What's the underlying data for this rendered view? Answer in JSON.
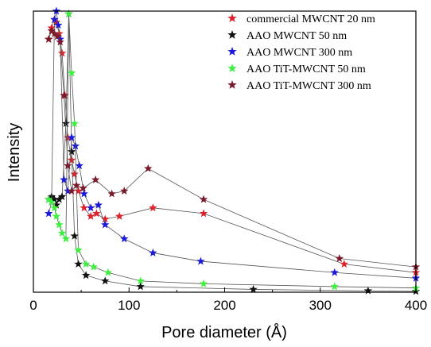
{
  "chart_data": {
    "type": "line",
    "title": "",
    "xlabel": "Pore diameter (Å)",
    "ylabel": "Intensity",
    "xlim": [
      0,
      400
    ],
    "ylim": [
      0,
      100
    ],
    "x_ticks": [
      "0",
      "100",
      "200",
      "300",
      "400"
    ],
    "y_ticks": [],
    "grid": false,
    "legend_position": "top-right",
    "marker": "star",
    "series": [
      {
        "name": "commercial MWCNT 20 nm",
        "color": "#e0202a",
        "points": [
          [
            16,
            90
          ],
          [
            19,
            94
          ],
          [
            22,
            97
          ],
          [
            24,
            96
          ],
          [
            27,
            92
          ],
          [
            30,
            85
          ],
          [
            33,
            70
          ],
          [
            36,
            55
          ],
          [
            40,
            47
          ],
          [
            43,
            42
          ],
          [
            47,
            36
          ],
          [
            53,
            30
          ],
          [
            60,
            27
          ],
          [
            66,
            28
          ],
          [
            75,
            26
          ],
          [
            90,
            27
          ],
          [
            125,
            30
          ],
          [
            178,
            28
          ],
          [
            325,
            10
          ],
          [
            400,
            7
          ]
        ]
      },
      {
        "name": "AAO MWCNT 50 nm",
        "color": "#111111",
        "points": [
          [
            16,
            33
          ],
          [
            19,
            34
          ],
          [
            22,
            33
          ],
          [
            24,
            31
          ],
          [
            27,
            33
          ],
          [
            30,
            34
          ],
          [
            34,
            60
          ],
          [
            37,
            99
          ],
          [
            40,
            50
          ],
          [
            43,
            20
          ],
          [
            47,
            10
          ],
          [
            55,
            6
          ],
          [
            75,
            4
          ],
          [
            112,
            2
          ],
          [
            230,
            1
          ],
          [
            350,
            0.5
          ],
          [
            400,
            0.3
          ]
        ]
      },
      {
        "name": "AAO MWCNT 300 nm",
        "color": "#1a1ad8",
        "points": [
          [
            16,
            28
          ],
          [
            19,
            32
          ],
          [
            22,
            97
          ],
          [
            24,
            100
          ],
          [
            26,
            95
          ],
          [
            28,
            90
          ],
          [
            32,
            40
          ],
          [
            36,
            36
          ],
          [
            40,
            55
          ],
          [
            44,
            52
          ],
          [
            48,
            45
          ],
          [
            53,
            35
          ],
          [
            60,
            30
          ],
          [
            68,
            31
          ],
          [
            75,
            24
          ],
          [
            95,
            19
          ],
          [
            125,
            14
          ],
          [
            175,
            11
          ],
          [
            315,
            7
          ],
          [
            400,
            5
          ]
        ]
      },
      {
        "name": "AAO TiT-MWCNT 50 nm",
        "color": "#40f040",
        "points": [
          [
            16,
            33
          ],
          [
            19,
            32
          ],
          [
            22,
            30
          ],
          [
            24,
            27
          ],
          [
            27,
            24
          ],
          [
            30,
            21
          ],
          [
            34,
            19
          ],
          [
            37,
            99
          ],
          [
            40,
            78
          ],
          [
            43,
            60
          ],
          [
            47,
            15
          ],
          [
            55,
            10
          ],
          [
            63,
            9
          ],
          [
            78,
            7
          ],
          [
            112,
            4
          ],
          [
            178,
            3
          ],
          [
            315,
            2
          ],
          [
            400,
            1.5
          ]
        ]
      },
      {
        "name": "AAO TiT-MWCNT 300 nm",
        "color": "#7a1a2a",
        "points": [
          [
            16,
            90
          ],
          [
            19,
            93
          ],
          [
            22,
            92
          ],
          [
            25,
            91
          ],
          [
            28,
            89
          ],
          [
            32,
            70
          ],
          [
            36,
            45
          ],
          [
            40,
            36
          ],
          [
            45,
            38
          ],
          [
            52,
            37
          ],
          [
            65,
            40
          ],
          [
            82,
            35
          ],
          [
            95,
            36
          ],
          [
            120,
            44
          ],
          [
            178,
            33
          ],
          [
            320,
            12
          ],
          [
            400,
            9
          ]
        ]
      }
    ]
  }
}
